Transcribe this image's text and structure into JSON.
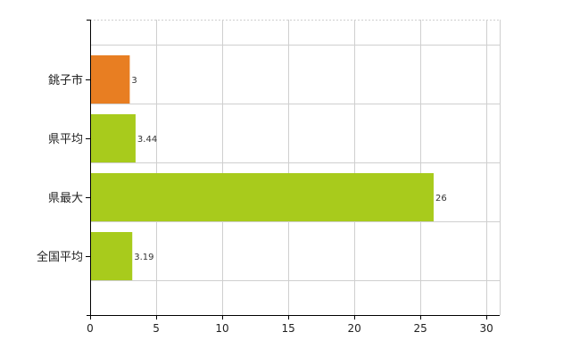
{
  "chart_data": {
    "type": "bar",
    "orientation": "horizontal",
    "categories": [
      "銚子市",
      "県平均",
      "県最大",
      "全国平均"
    ],
    "values": [
      3,
      3.44,
      26,
      3.19
    ],
    "value_labels": [
      "3",
      "3.44",
      "26",
      "3.19"
    ],
    "colors": [
      "#e87e22",
      "#a8cb1c",
      "#a8cb1c",
      "#a8cb1c"
    ],
    "xlim": [
      0,
      31
    ],
    "xticks": [
      0,
      5,
      10,
      15,
      20,
      25,
      30
    ],
    "grid": true,
    "title": "",
    "xlabel": "",
    "ylabel": ""
  }
}
